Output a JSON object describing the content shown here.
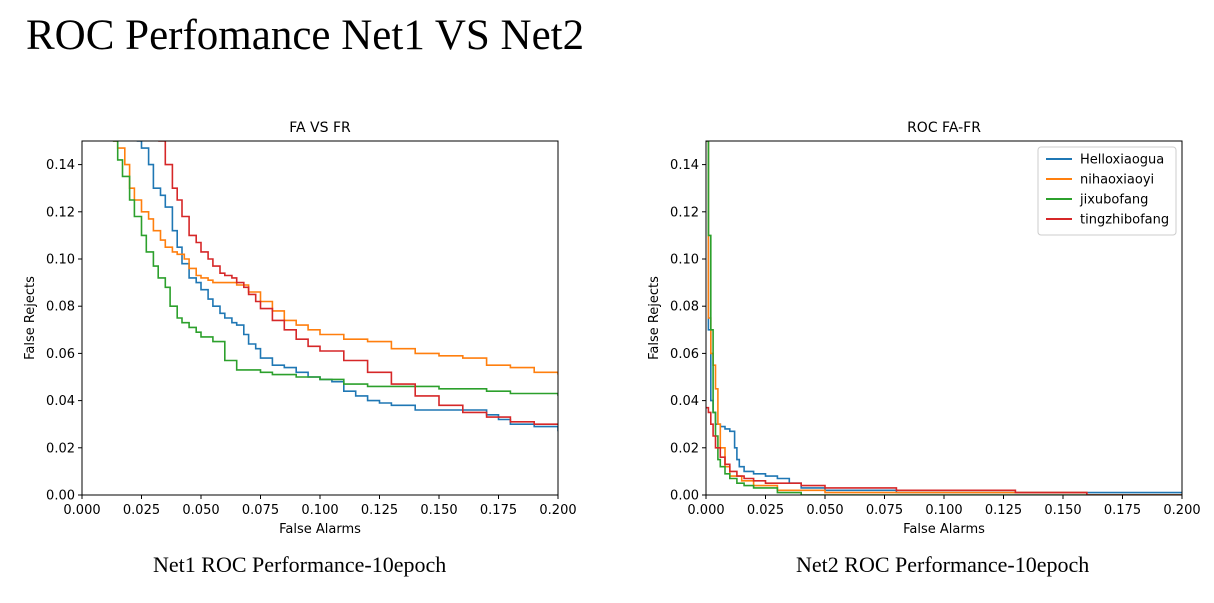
{
  "page": {
    "title": "ROC Perfomance Net1 VS Net2",
    "captions": [
      "Net1 ROC Performance-10epoch",
      "Net2 ROC Performance-10epoch"
    ]
  },
  "chart_data": [
    {
      "type": "line",
      "title": "FA VS FR",
      "xlabel": "False Alarms",
      "ylabel": "False Rejects",
      "xlim": [
        0,
        0.2
      ],
      "ylim": [
        0,
        0.15
      ],
      "xticks": [
        "0.000",
        "0.025",
        "0.050",
        "0.075",
        "0.100",
        "0.125",
        "0.150",
        "0.175",
        "0.200"
      ],
      "yticks": [
        "0.00",
        "0.02",
        "0.04",
        "0.06",
        "0.08",
        "0.10",
        "0.12",
        "0.14"
      ],
      "grid": false,
      "legend": "none",
      "series": [
        {
          "color": "#1f77b4",
          "x": [
            0.023,
            0.025,
            0.028,
            0.03,
            0.033,
            0.035,
            0.038,
            0.04,
            0.042,
            0.045,
            0.048,
            0.05,
            0.053,
            0.055,
            0.058,
            0.06,
            0.063,
            0.065,
            0.068,
            0.07,
            0.073,
            0.075,
            0.08,
            0.085,
            0.09,
            0.095,
            0.1,
            0.105,
            0.11,
            0.115,
            0.12,
            0.125,
            0.13,
            0.14,
            0.15,
            0.16,
            0.17,
            0.175,
            0.18,
            0.19,
            0.2
          ],
          "y": [
            0.15,
            0.147,
            0.14,
            0.13,
            0.127,
            0.122,
            0.112,
            0.105,
            0.098,
            0.092,
            0.09,
            0.087,
            0.083,
            0.08,
            0.077,
            0.075,
            0.073,
            0.072,
            0.068,
            0.064,
            0.062,
            0.058,
            0.055,
            0.054,
            0.052,
            0.05,
            0.049,
            0.048,
            0.044,
            0.042,
            0.04,
            0.039,
            0.038,
            0.036,
            0.036,
            0.036,
            0.034,
            0.032,
            0.03,
            0.029,
            0.027
          ]
        },
        {
          "color": "#ff7f0e",
          "x": [
            0.013,
            0.015,
            0.018,
            0.02,
            0.022,
            0.025,
            0.028,
            0.03,
            0.033,
            0.035,
            0.038,
            0.04,
            0.043,
            0.045,
            0.048,
            0.05,
            0.053,
            0.055,
            0.06,
            0.065,
            0.07,
            0.075,
            0.08,
            0.085,
            0.09,
            0.095,
            0.1,
            0.11,
            0.12,
            0.13,
            0.14,
            0.15,
            0.16,
            0.17,
            0.18,
            0.19,
            0.2
          ],
          "y": [
            0.15,
            0.147,
            0.14,
            0.13,
            0.125,
            0.12,
            0.117,
            0.112,
            0.108,
            0.105,
            0.103,
            0.102,
            0.1,
            0.096,
            0.093,
            0.092,
            0.091,
            0.09,
            0.09,
            0.089,
            0.086,
            0.082,
            0.078,
            0.074,
            0.072,
            0.07,
            0.068,
            0.066,
            0.065,
            0.062,
            0.06,
            0.059,
            0.058,
            0.055,
            0.054,
            0.052,
            0.051
          ]
        },
        {
          "color": "#2ca02c",
          "x": [
            0.013,
            0.015,
            0.017,
            0.02,
            0.022,
            0.025,
            0.027,
            0.03,
            0.032,
            0.035,
            0.037,
            0.04,
            0.042,
            0.045,
            0.048,
            0.05,
            0.055,
            0.06,
            0.065,
            0.07,
            0.075,
            0.08,
            0.09,
            0.1,
            0.11,
            0.12,
            0.13,
            0.15,
            0.17,
            0.18,
            0.2
          ],
          "y": [
            0.15,
            0.142,
            0.135,
            0.125,
            0.118,
            0.11,
            0.103,
            0.097,
            0.092,
            0.088,
            0.08,
            0.075,
            0.073,
            0.071,
            0.069,
            0.067,
            0.065,
            0.057,
            0.053,
            0.053,
            0.052,
            0.051,
            0.05,
            0.049,
            0.047,
            0.046,
            0.046,
            0.045,
            0.044,
            0.043,
            0.042
          ]
        },
        {
          "color": "#d62728",
          "x": [
            0.032,
            0.035,
            0.038,
            0.04,
            0.042,
            0.045,
            0.048,
            0.05,
            0.053,
            0.055,
            0.058,
            0.06,
            0.063,
            0.065,
            0.068,
            0.07,
            0.073,
            0.075,
            0.08,
            0.085,
            0.09,
            0.095,
            0.1,
            0.11,
            0.12,
            0.13,
            0.14,
            0.15,
            0.16,
            0.17,
            0.18,
            0.19,
            0.2
          ],
          "y": [
            0.15,
            0.14,
            0.13,
            0.125,
            0.118,
            0.11,
            0.107,
            0.103,
            0.1,
            0.097,
            0.094,
            0.093,
            0.092,
            0.09,
            0.088,
            0.085,
            0.082,
            0.079,
            0.074,
            0.07,
            0.066,
            0.063,
            0.061,
            0.057,
            0.052,
            0.047,
            0.042,
            0.038,
            0.035,
            0.033,
            0.031,
            0.03,
            0.03
          ]
        }
      ]
    },
    {
      "type": "line",
      "title": "ROC FA-FR",
      "xlabel": "False Alarms",
      "ylabel": "False Rejects",
      "xlim": [
        0,
        0.2
      ],
      "ylim": [
        0,
        0.15
      ],
      "xticks": [
        "0.000",
        "0.025",
        "0.050",
        "0.075",
        "0.100",
        "0.125",
        "0.150",
        "0.175",
        "0.200"
      ],
      "yticks": [
        "0.00",
        "0.02",
        "0.04",
        "0.06",
        "0.08",
        "0.10",
        "0.12",
        "0.14"
      ],
      "grid": false,
      "legend": "top-right",
      "series": [
        {
          "name": "Helloxiaogua",
          "color": "#1f77b4",
          "x": [
            0.0,
            0.001,
            0.002,
            0.003,
            0.004,
            0.006,
            0.008,
            0.01,
            0.012,
            0.013,
            0.014,
            0.016,
            0.02,
            0.025,
            0.03,
            0.035,
            0.04,
            0.05,
            0.06,
            0.08,
            0.1,
            0.15,
            0.2
          ],
          "y": [
            0.15,
            0.07,
            0.04,
            0.035,
            0.03,
            0.029,
            0.028,
            0.027,
            0.02,
            0.015,
            0.012,
            0.01,
            0.009,
            0.008,
            0.007,
            0.005,
            0.003,
            0.002,
            0.002,
            0.001,
            0.001,
            0.001,
            0.001
          ]
        },
        {
          "name": "nihaoxiaoyi",
          "color": "#ff7f0e",
          "x": [
            0.0,
            0.001,
            0.002,
            0.003,
            0.004,
            0.005,
            0.006,
            0.008,
            0.01,
            0.015,
            0.02,
            0.03,
            0.05,
            0.08,
            0.12,
            0.16,
            0.2
          ],
          "y": [
            0.15,
            0.075,
            0.06,
            0.055,
            0.045,
            0.03,
            0.02,
            0.012,
            0.008,
            0.006,
            0.004,
            0.002,
            0.001,
            0.001,
            0.001,
            0.0,
            0.0
          ]
        },
        {
          "name": "jixubofang",
          "color": "#2ca02c",
          "x": [
            0.0,
            0.001,
            0.002,
            0.003,
            0.004,
            0.005,
            0.006,
            0.008,
            0.01,
            0.013,
            0.016,
            0.02,
            0.03,
            0.04,
            0.06,
            0.1,
            0.2
          ],
          "y": [
            0.15,
            0.11,
            0.07,
            0.035,
            0.025,
            0.015,
            0.012,
            0.009,
            0.007,
            0.005,
            0.004,
            0.003,
            0.001,
            0.0,
            0.0,
            0.0,
            0.0
          ]
        },
        {
          "name": "tingzhibofang",
          "color": "#d62728",
          "x": [
            0.0,
            0.001,
            0.002,
            0.003,
            0.004,
            0.006,
            0.008,
            0.01,
            0.013,
            0.016,
            0.02,
            0.025,
            0.03,
            0.04,
            0.05,
            0.06,
            0.08,
            0.1,
            0.13,
            0.15,
            0.16,
            0.2
          ],
          "y": [
            0.037,
            0.035,
            0.03,
            0.025,
            0.02,
            0.016,
            0.013,
            0.01,
            0.008,
            0.007,
            0.006,
            0.005,
            0.005,
            0.004,
            0.003,
            0.003,
            0.002,
            0.002,
            0.001,
            0.001,
            0.0,
            0.0
          ]
        }
      ]
    }
  ]
}
